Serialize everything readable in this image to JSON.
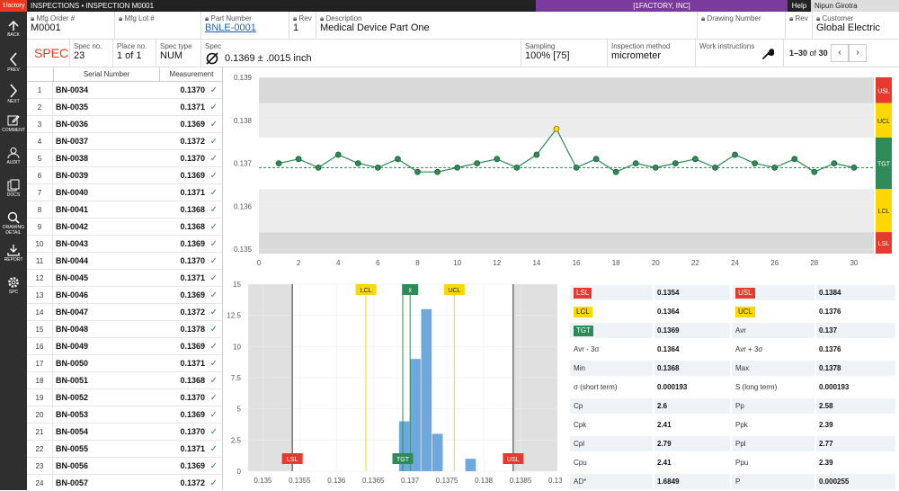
{
  "topbar": {
    "brand": "1factory",
    "breadcrumb": "INSPECTIONS • INSPECTION M0001",
    "company": "[1FACTORY, INC]",
    "help": "Help",
    "user": "Nipun Girotra"
  },
  "nav": {
    "back": "BACK",
    "prev": "PREV",
    "next": "NEXT",
    "comment": "COMMENT",
    "audit": "AUDIT",
    "docs": "DOCS",
    "drawing": "DRAWING",
    "detail": "DETAIL",
    "report": "REPORT",
    "spc": "SPC"
  },
  "header": {
    "mfg_order_label": "Mfg Order #",
    "mfg_order": "M0001",
    "mfg_lot_label": "Mfg Lot #",
    "mfg_lot": "",
    "part_number_label": "Part Number",
    "part_number": "BNLE-0001",
    "rev_label": "Rev",
    "rev": "1",
    "description_label": "Description",
    "description": "Medical Device Part One",
    "drawing_number_label": "Drawing Number",
    "drawing_number": "",
    "rev2_label": "Rev",
    "rev2": "",
    "customer_label": "Customer",
    "customer": "Global Electric"
  },
  "spec_row": {
    "title": "SPEC",
    "spec_no_label": "Spec no.",
    "spec_no": "23",
    "place_no_label": "Place no.",
    "place_no": "1 of 1",
    "spec_type_label": "Spec type",
    "spec_type": "NUM",
    "spec_label": "Spec",
    "spec_value": "0.1369 ± .0015  inch",
    "sampling_label": "Sampling",
    "sampling": "100% [75]",
    "method_label": "Inspection method",
    "method": "micrometer",
    "work_label": "Work instructions",
    "pagination_range": "1–30",
    "pagination_of": "of",
    "pagination_total": "30"
  },
  "table": {
    "col_serial": "Serial Number",
    "col_measurement": "Measurement",
    "rows": [
      {
        "i": "1",
        "sn": "BN-0034",
        "m": "0.1370"
      },
      {
        "i": "2",
        "sn": "BN-0035",
        "m": "0.1371"
      },
      {
        "i": "3",
        "sn": "BN-0036",
        "m": "0.1369"
      },
      {
        "i": "4",
        "sn": "BN-0037",
        "m": "0.1372"
      },
      {
        "i": "5",
        "sn": "BN-0038",
        "m": "0.1370"
      },
      {
        "i": "6",
        "sn": "BN-0039",
        "m": "0.1369"
      },
      {
        "i": "7",
        "sn": "BN-0040",
        "m": "0.1371"
      },
      {
        "i": "8",
        "sn": "BN-0041",
        "m": "0.1368"
      },
      {
        "i": "9",
        "sn": "BN-0042",
        "m": "0.1368"
      },
      {
        "i": "10",
        "sn": "BN-0043",
        "m": "0.1369"
      },
      {
        "i": "11",
        "sn": "BN-0044",
        "m": "0.1370"
      },
      {
        "i": "12",
        "sn": "BN-0045",
        "m": "0.1371"
      },
      {
        "i": "13",
        "sn": "BN-0046",
        "m": "0.1369"
      },
      {
        "i": "14",
        "sn": "BN-0047",
        "m": "0.1372"
      },
      {
        "i": "15",
        "sn": "BN-0048",
        "m": "0.1378"
      },
      {
        "i": "16",
        "sn": "BN-0049",
        "m": "0.1369"
      },
      {
        "i": "17",
        "sn": "BN-0050",
        "m": "0.1371"
      },
      {
        "i": "18",
        "sn": "BN-0051",
        "m": "0.1368"
      },
      {
        "i": "19",
        "sn": "BN-0052",
        "m": "0.1370"
      },
      {
        "i": "20",
        "sn": "BN-0053",
        "m": "0.1369"
      },
      {
        "i": "21",
        "sn": "BN-0054",
        "m": "0.1370"
      },
      {
        "i": "22",
        "sn": "BN-0055",
        "m": "0.1371"
      },
      {
        "i": "23",
        "sn": "BN-0056",
        "m": "0.1369"
      },
      {
        "i": "24",
        "sn": "BN-0057",
        "m": "0.1372"
      }
    ]
  },
  "chart_data": [
    {
      "type": "line",
      "x": [
        1,
        2,
        3,
        4,
        5,
        6,
        7,
        8,
        9,
        10,
        11,
        12,
        13,
        14,
        15,
        16,
        17,
        18,
        19,
        20,
        21,
        22,
        23,
        24,
        25,
        26,
        27,
        28,
        29,
        30
      ],
      "series": [
        {
          "values": [
            0.137,
            0.1371,
            0.1369,
            0.1372,
            0.137,
            0.1369,
            0.1371,
            0.1368,
            0.1368,
            0.1369,
            0.137,
            0.1371,
            0.1369,
            0.1372,
            0.1378,
            0.1369,
            0.1371,
            0.1368,
            0.137,
            0.1369,
            0.137,
            0.1371,
            0.1369,
            0.1372,
            0.137,
            0.1369,
            0.1371,
            0.1368,
            0.137,
            0.1369
          ],
          "color": "#2e8b57",
          "highlight_index": 14,
          "highlight_color": "#ffd800"
        }
      ],
      "ylim": [
        0.1349,
        0.139
      ],
      "yticks": [
        "0.135",
        "0.136",
        "0.137",
        "0.138",
        "0.139"
      ],
      "yticks_values": [
        0.135,
        0.136,
        0.137,
        0.138,
        0.139
      ],
      "xticks": [
        "0",
        "2",
        "4",
        "6",
        "8",
        "10",
        "12",
        "14",
        "16",
        "18",
        "20",
        "22",
        "24",
        "26",
        "28",
        "30"
      ],
      "xlim": [
        0,
        31
      ],
      "target": 0.1369,
      "zones": [
        {
          "from": 0.1349,
          "to": 0.1354,
          "color": "#d9d9d9"
        },
        {
          "from": 0.1354,
          "to": 0.1364,
          "color": "#ececec"
        },
        {
          "from": 0.1364,
          "to": 0.1376,
          "color": "#ffffff"
        },
        {
          "from": 0.1376,
          "to": 0.1384,
          "color": "#ececec"
        },
        {
          "from": 0.1384,
          "to": 0.139,
          "color": "#d9d9d9"
        }
      ],
      "bands": [
        {
          "label": "USL",
          "from": 0.1384,
          "to": 0.139,
          "color": "#e8392d",
          "text": "#ffffff"
        },
        {
          "label": "UCL",
          "from": 0.1376,
          "to": 0.1384,
          "color": "#ffd800",
          "text": "#222222"
        },
        {
          "label": "TGT",
          "from": 0.1364,
          "to": 0.1376,
          "color": "#2e8b57",
          "text": "#ffffff"
        },
        {
          "label": "LCL",
          "from": 0.1354,
          "to": 0.1364,
          "color": "#ffd800",
          "text": "#222222"
        },
        {
          "label": "LSL",
          "from": 0.1349,
          "to": 0.1354,
          "color": "#e8392d",
          "text": "#ffffff"
        }
      ],
      "grid": true
    },
    {
      "type": "bar",
      "subtype": "histogram",
      "bins": [
        {
          "from": 0.13685,
          "to": 0.137,
          "count": 4
        },
        {
          "from": 0.137,
          "to": 0.13715,
          "count": 9
        },
        {
          "from": 0.13715,
          "to": 0.1373,
          "count": 13
        },
        {
          "from": 0.1373,
          "to": 0.13745,
          "count": 3
        },
        {
          "from": 0.13775,
          "to": 0.1379,
          "count": 1
        }
      ],
      "bar_color": "#6fa8dc",
      "xlim": [
        0.1348,
        0.139
      ],
      "xticks": [
        "0.135",
        "0.1355",
        "0.136",
        "0.1365",
        "0.137",
        "0.1375",
        "0.138",
        "0.1385",
        "0.139"
      ],
      "xticks_values": [
        0.135,
        0.1355,
        0.136,
        0.1365,
        0.137,
        0.1375,
        0.138,
        0.1385,
        0.139
      ],
      "ylim": [
        0,
        15
      ],
      "yticks": [
        "0",
        "2.5",
        "5",
        "7.5",
        "10",
        "12.5",
        "15"
      ],
      "yticks_values": [
        0,
        2.5,
        5,
        7.5,
        10,
        12.5,
        15
      ],
      "spec_limits": {
        "lsl": 0.1354,
        "usl": 0.1384
      },
      "lines": [
        {
          "label": "LSL",
          "value": 0.1354,
          "color": "#333333",
          "tag": "#e8392d",
          "tagtext": "#ffffff",
          "pos": "bottom"
        },
        {
          "label": "LCL",
          "value": 0.1364,
          "color": "#ffd800",
          "tag": "#ffd800",
          "tagtext": "#222222",
          "pos": "top"
        },
        {
          "label": "TGT",
          "value": 0.1369,
          "color": "#2e8b57",
          "tag": "#2e8b57",
          "tagtext": "#ffffff",
          "pos": "bottom"
        },
        {
          "label": "x̄",
          "value": 0.137,
          "color": "#2e8b57",
          "tag": "#2e8b57",
          "tagtext": "#ffffff",
          "pos": "top"
        },
        {
          "label": "UCL",
          "value": 0.1376,
          "color": "#ffd800",
          "tag": "#ffd800",
          "tagtext": "#222222",
          "pos": "top"
        },
        {
          "label": "USL",
          "value": 0.1384,
          "color": "#333333",
          "tag": "#e8392d",
          "tagtext": "#ffffff",
          "pos": "bottom"
        }
      ]
    }
  ],
  "stats": [
    {
      "l1": "LSL",
      "t1": "red",
      "v1": "0.1354",
      "l2": "USL",
      "t2": "red",
      "v2": "0.1384"
    },
    {
      "l1": "LCL",
      "t1": "yel",
      "v1": "0.1364",
      "l2": "UCL",
      "t2": "yel",
      "v2": "0.1376"
    },
    {
      "l1": "TGT",
      "t1": "grn",
      "v1": "0.1369",
      "l2": "Avr",
      "t2": "",
      "v2": "0.137"
    },
    {
      "l1": "Avr - 3σ",
      "t1": "",
      "v1": "0.1364",
      "l2": "Avr + 3σ",
      "t2": "",
      "v2": "0.1376"
    },
    {
      "l1": "Min",
      "t1": "",
      "v1": "0.1368",
      "l2": "Max",
      "t2": "",
      "v2": "0.1378"
    },
    {
      "l1": "σ (short term)",
      "t1": "",
      "v1": "0.000193",
      "l2": "S (long term)",
      "t2": "",
      "v2": "0.000193"
    },
    {
      "l1": "Cp",
      "t1": "",
      "v1": "2.6",
      "l2": "Pp",
      "t2": "",
      "v2": "2.58"
    },
    {
      "l1": "Cpk",
      "t1": "",
      "v1": "2.41",
      "l2": "Ppk",
      "t2": "",
      "v2": "2.39"
    },
    {
      "l1": "Cpl",
      "t1": "",
      "v1": "2.79",
      "l2": "Ppl",
      "t2": "",
      "v2": "2.77"
    },
    {
      "l1": "Cpu",
      "t1": "",
      "v1": "2.41",
      "l2": "Ppu",
      "t2": "",
      "v2": "2.39"
    },
    {
      "l1": "AD*",
      "t1": "",
      "v1": "1.6849",
      "l2": "P",
      "t2": "",
      "v2": "0.000255"
    }
  ]
}
